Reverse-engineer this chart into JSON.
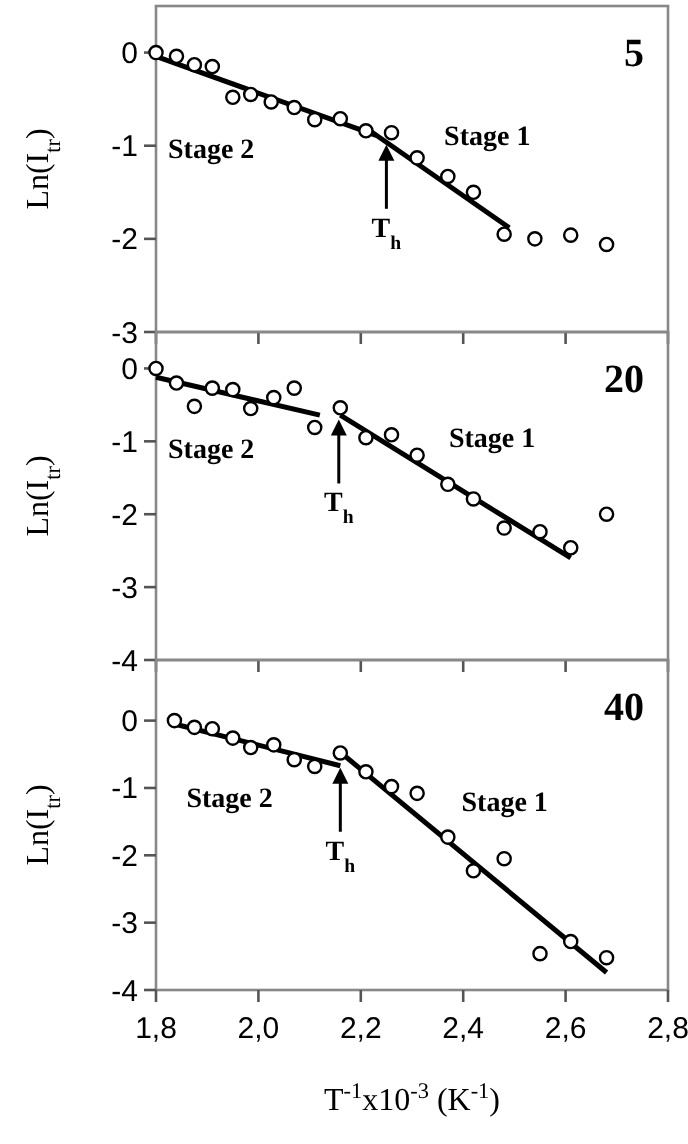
{
  "chart_data": [
    {
      "type": "scatter",
      "title": "5",
      "ylabel": "Ln(I$_{tr}$)",
      "marker": "circle",
      "tick_labels": "y",
      "xlim": [
        1.8,
        2.8
      ],
      "xticks": [
        1.8,
        2.0,
        2.2,
        2.4,
        2.6,
        2.8
      ],
      "ylim": [
        -3,
        0.5
      ],
      "yticks": [
        0,
        -1,
        -2,
        -3
      ],
      "series": [
        {
          "color": "#000000",
          "x": [
            1.8,
            1.84,
            1.875,
            1.91,
            1.95,
            1.985,
            2.025,
            2.07,
            2.11,
            2.16,
            2.21,
            2.26,
            2.31,
            2.37,
            2.42,
            2.48,
            2.54,
            2.61,
            2.68
          ],
          "values": [
            0,
            -0.04,
            -0.13,
            -0.15,
            -0.48,
            -0.45,
            -0.53,
            -0.59,
            -0.72,
            -0.71,
            -0.84,
            -0.86,
            -1.13,
            -1.33,
            -1.5,
            -1.95,
            -2.0,
            -1.96,
            -2.06
          ]
        },
        {
          "type": "line",
          "marker": "none",
          "color": "#000000",
          "x": [
            1.8,
            2.23
          ],
          "values": [
            -0.04,
            -0.89
          ]
        },
        {
          "type": "line",
          "marker": "none",
          "color": "#000000",
          "x": [
            2.21,
            2.49
          ],
          "values": [
            -0.81,
            -1.88
          ]
        }
      ],
      "annotations": [
        "Stage 2",
        "Stage 1",
        {
          "text": "T$_{h}$",
          "x": 2.25,
          "y": -0.99
        }
      ]
    },
    {
      "type": "scatter",
      "title": "20",
      "ylabel": "Ln(I$_{tr}$)",
      "marker": "circle",
      "tick_labels": "y",
      "xlim": [
        1.8,
        2.8
      ],
      "xticks": [
        1.8,
        2.0,
        2.2,
        2.4,
        2.6,
        2.8
      ],
      "ylim": [
        -4,
        0.5
      ],
      "yticks": [
        0,
        -1,
        -2,
        -3,
        -4
      ],
      "series": [
        {
          "color": "#000000",
          "x": [
            1.8,
            1.84,
            1.875,
            1.91,
            1.95,
            1.985,
            2.03,
            2.07,
            2.11,
            2.16,
            2.21,
            2.26,
            2.31,
            2.37,
            2.42,
            2.48,
            2.55,
            2.61,
            2.68
          ],
          "values": [
            0,
            -0.2,
            -0.52,
            -0.27,
            -0.29,
            -0.55,
            -0.4,
            -0.27,
            -0.81,
            -0.54,
            -0.95,
            -0.91,
            -1.19,
            -1.59,
            -1.79,
            -2.19,
            -2.24,
            -2.46,
            -2.0
          ]
        },
        {
          "type": "line",
          "marker": "none",
          "color": "#000000",
          "x": [
            1.8,
            2.12
          ],
          "values": [
            -0.12,
            -0.64
          ]
        },
        {
          "type": "line",
          "marker": "none",
          "color": "#000000",
          "x": [
            2.16,
            2.61
          ],
          "values": [
            -0.64,
            -2.6
          ]
        }
      ],
      "annotations": [
        "Stage 2",
        "Stage 1",
        {
          "text": "T$_{h}$",
          "x": 2.157,
          "y": -0.7
        }
      ]
    },
    {
      "type": "scatter",
      "title": "40",
      "ylabel": "Ln(I$_{tr}$)",
      "xlabel": "T$^{-1}$x10$^{-3}$ (K$^{-1}$)",
      "marker": "circle",
      "xlim": [
        1.8,
        2.8
      ],
      "xticks": [
        {
          "value": 1.8,
          "label": "1,8"
        },
        {
          "value": 2.0,
          "label": "2,0"
        },
        {
          "value": 2.2,
          "label": "2,2"
        },
        {
          "value": 2.4,
          "label": "2,4"
        },
        {
          "value": 2.6,
          "label": "2,6"
        },
        {
          "value": 2.8,
          "label": "2,8"
        }
      ],
      "ylim": [
        -4,
        0.9
      ],
      "yticks": [
        0,
        -1,
        -2,
        -3,
        -4
      ],
      "series": [
        {
          "color": "#000000",
          "x": [
            1.836,
            1.875,
            1.91,
            1.95,
            1.985,
            2.03,
            2.07,
            2.11,
            2.16,
            2.21,
            2.26,
            2.31,
            2.37,
            2.42,
            2.48,
            2.55,
            2.61,
            2.68
          ],
          "values": [
            0,
            -0.1,
            -0.12,
            -0.26,
            -0.4,
            -0.36,
            -0.58,
            -0.68,
            -0.48,
            -0.76,
            -0.98,
            -1.08,
            -1.73,
            -2.23,
            -2.05,
            -3.46,
            -3.28,
            -3.52
          ]
        },
        {
          "type": "line",
          "marker": "none",
          "color": "#000000",
          "x": [
            1.836,
            2.16
          ],
          "values": [
            -0.05,
            -0.67
          ]
        },
        {
          "type": "line",
          "marker": "none",
          "color": "#000000",
          "x": [
            2.16,
            2.68
          ],
          "values": [
            -0.47,
            -3.74
          ]
        }
      ],
      "annotations": [
        "Stage 2",
        "Stage 1",
        {
          "text": "T$_{h}$",
          "x": 2.16,
          "y": -0.7
        }
      ]
    }
  ]
}
